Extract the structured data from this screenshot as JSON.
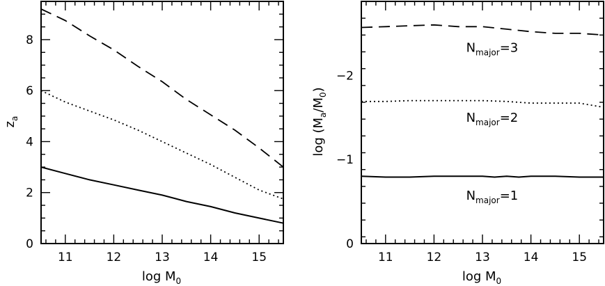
{
  "chart_data": [
    {
      "type": "line",
      "xlabel": "log M",
      "xlabel_sub": "0",
      "ylabel": "z",
      "ylabel_sub": "a",
      "xlim": [
        10.5,
        15.5
      ],
      "ylim": [
        0,
        9.5
      ],
      "xticks": [
        "11",
        "12",
        "13",
        "14",
        "15"
      ],
      "yticks": [
        "0",
        "2",
        "4",
        "6",
        "8"
      ],
      "series": [
        {
          "style": "solid",
          "x": [
            10.5,
            11,
            11.5,
            12,
            12.5,
            13,
            13.5,
            14,
            14.5,
            15,
            15.5
          ],
          "y": [
            3.0,
            2.75,
            2.5,
            2.3,
            2.1,
            1.9,
            1.65,
            1.45,
            1.2,
            1.0,
            0.8
          ]
        },
        {
          "style": "dotted",
          "x": [
            10.5,
            11,
            11.5,
            12,
            12.5,
            13,
            13.5,
            14,
            14.5,
            15,
            15.5
          ],
          "y": [
            6.0,
            5.55,
            5.2,
            4.85,
            4.45,
            4.0,
            3.55,
            3.1,
            2.6,
            2.1,
            1.75
          ]
        },
        {
          "style": "dashed",
          "x": [
            10.5,
            11,
            11.5,
            12,
            12.5,
            13,
            13.5,
            14,
            14.5,
            15,
            15.5
          ],
          "y": [
            9.2,
            8.75,
            8.15,
            7.6,
            6.95,
            6.35,
            5.65,
            5.05,
            4.45,
            3.75,
            3.0
          ]
        }
      ]
    },
    {
      "type": "line",
      "xlabel": "log M",
      "xlabel_sub": "0",
      "ylabel_prefix": "log (M",
      "ylabel_sub1": "a",
      "ylabel_mid": "/M",
      "ylabel_sub2": "0",
      "ylabel_suffix": ")",
      "xlim": [
        10.5,
        15.5
      ],
      "ylim": [
        0,
        -2.88
      ],
      "xticks": [
        "11",
        "12",
        "13",
        "14",
        "15"
      ],
      "yticks": [
        "0",
        "−1",
        "−2"
      ],
      "series": [
        {
          "style": "solid",
          "x": [
            10.5,
            11,
            11.5,
            12,
            12.5,
            13,
            13.25,
            13.5,
            13.75,
            14,
            14.5,
            15,
            15.5
          ],
          "y": [
            -0.8,
            -0.79,
            -0.79,
            -0.8,
            -0.8,
            -0.8,
            -0.79,
            -0.8,
            -0.79,
            -0.8,
            -0.8,
            -0.79,
            -0.79
          ]
        },
        {
          "style": "dotted",
          "x": [
            10.5,
            11,
            11.5,
            12,
            12.5,
            13,
            13.5,
            14,
            14.5,
            15,
            15.5
          ],
          "y": [
            -1.69,
            -1.69,
            -1.7,
            -1.7,
            -1.7,
            -1.7,
            -1.69,
            -1.67,
            -1.67,
            -1.67,
            -1.62
          ]
        },
        {
          "style": "dashed",
          "x": [
            10.5,
            11,
            11.5,
            12,
            12.5,
            13,
            13.5,
            14,
            14.5,
            15,
            15.5
          ],
          "y": [
            -2.57,
            -2.58,
            -2.59,
            -2.6,
            -2.58,
            -2.58,
            -2.55,
            -2.52,
            -2.5,
            -2.5,
            -2.48
          ]
        }
      ],
      "annotations": [
        {
          "main": "N",
          "sub": "major",
          "tail": "=3",
          "x": 13.2,
          "y": -2.28
        },
        {
          "main": "N",
          "sub": "major",
          "tail": "=2",
          "x": 13.2,
          "y": -1.45
        },
        {
          "main": "N",
          "sub": "major",
          "tail": "=1",
          "x": 13.2,
          "y": -0.52
        }
      ]
    }
  ]
}
